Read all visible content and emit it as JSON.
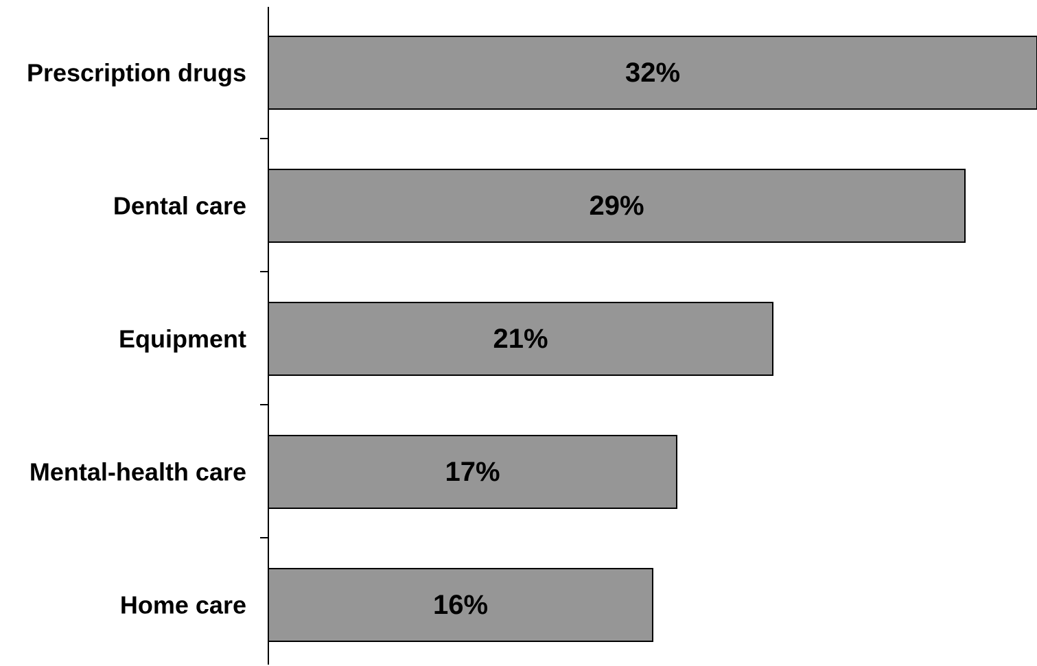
{
  "chart_data": {
    "type": "bar",
    "orientation": "horizontal",
    "categories": [
      "Prescription drugs",
      "Dental care",
      "Equipment",
      "Mental-health care",
      "Home care"
    ],
    "values": [
      32,
      29,
      21,
      17,
      16
    ],
    "data_labels": [
      "32%",
      "29%",
      "21%",
      "17%",
      "16%"
    ],
    "title": "",
    "xlabel": "",
    "ylabel": "",
    "xlim": [
      0,
      32
    ],
    "grid": false,
    "legend": "none",
    "colors": {
      "bar_fill": "#969696",
      "bar_stroke": "#000000",
      "axis": "#000000",
      "text": "#000000"
    }
  }
}
